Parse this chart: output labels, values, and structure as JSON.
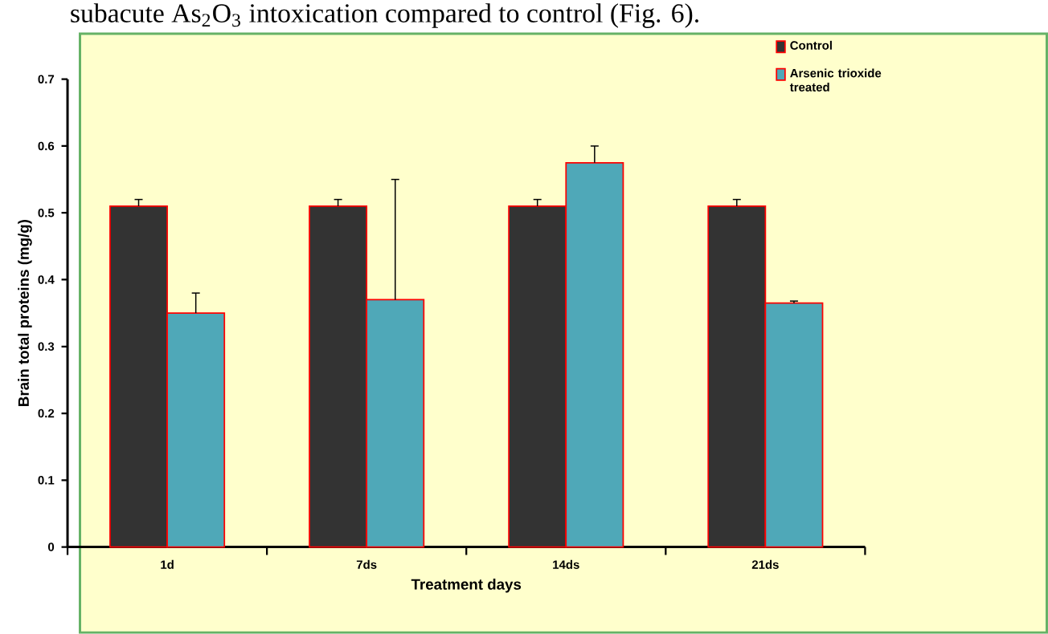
{
  "chart_data": {
    "type": "bar",
    "categories": [
      "1d",
      "7ds",
      "14ds",
      "21ds"
    ],
    "series": [
      {
        "name": "Control",
        "color": "#333333",
        "values": [
          0.51,
          0.51,
          0.51,
          0.51
        ],
        "errors": [
          0.01,
          0.01,
          0.01,
          0.01
        ]
      },
      {
        "name": "Arsenic trioxide treated",
        "color": "#4fa8b8",
        "values": [
          0.35,
          0.37,
          0.575,
          0.365
        ],
        "errors": [
          0.03,
          0.18,
          0.025,
          0.003
        ]
      }
    ],
    "ylim": [
      0,
      0.7
    ],
    "yticks": [
      0,
      0.1,
      0.2,
      0.3,
      0.4,
      0.5,
      0.6,
      0.7
    ],
    "xlabel": "Treatment days",
    "ylabel": "Brain total proteins (mg/g)",
    "legend": "top right",
    "annotations": [
      "subacute As$_{2}$O$_{3}$ intoxication compared to control (Fig. 6)."
    ]
  }
}
